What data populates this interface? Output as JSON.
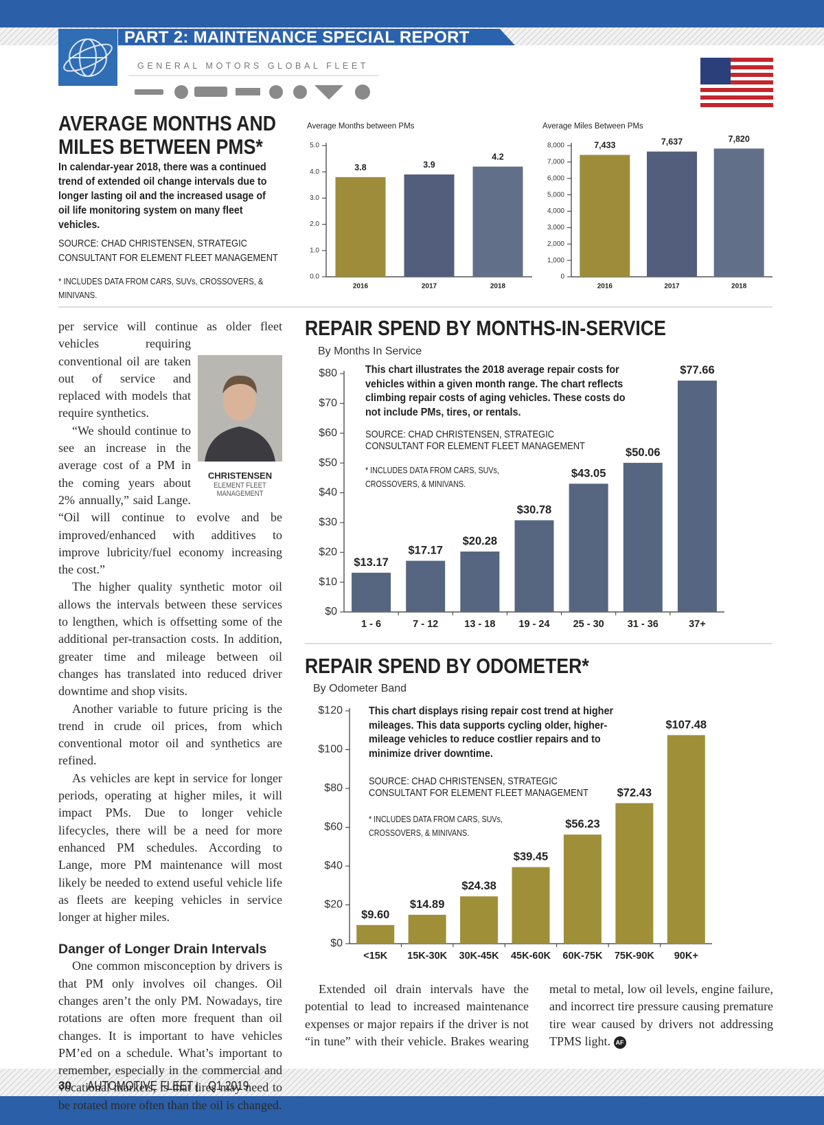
{
  "header": {
    "section": "PART 2: MAINTENANCE SPECIAL REPORT",
    "brand": "GENERAL MOTORS GLOBAL FLEET"
  },
  "sidebar": {
    "title": "AVERAGE MONTHS AND MILES BETWEEN PMS*",
    "intro": "In calendar-year 2018, there was a continued trend of extended oil change intervals due to longer lasting oil and the increased usage of oil life monitoring system on many fleet vehicles.",
    "source": "SOURCE: CHAD CHRISTENSEN, STRATEGIC CONSULTANT FOR ELEMENT FLEET MANAGEMENT",
    "note": "* INCLUDES DATA FROM CARS, SUVs, CROSSOVERS, & MINIVANS."
  },
  "chart_data": [
    {
      "type": "bar",
      "title": "Average Months between PMs",
      "categories": [
        "2016",
        "2017",
        "2018"
      ],
      "values": [
        3.8,
        3.9,
        4.2
      ],
      "colors": [
        "#9e8c3a",
        "#525e7b",
        "#617088"
      ],
      "ylim": [
        0,
        5
      ],
      "yticks": [
        {
          "value": 0,
          "label": "0.0"
        },
        {
          "value": 1,
          "label": "1.0"
        },
        {
          "value": 2,
          "label": "2.0"
        },
        {
          "value": 3,
          "label": "3.0"
        },
        {
          "value": 4,
          "label": "4.0"
        },
        {
          "value": 5,
          "label": "5.0"
        }
      ]
    },
    {
      "type": "bar",
      "title": "Average Miles Between PMs",
      "categories": [
        "2016",
        "2017",
        "2018"
      ],
      "values": [
        7433,
        7637,
        7820
      ],
      "value_labels": [
        "7,433",
        "7,637",
        "7,820"
      ],
      "colors": [
        "#9e8c3a",
        "#525e7b",
        "#617088"
      ],
      "ylim": [
        0,
        8000
      ],
      "yticks": [
        0,
        {
          "value": 1000,
          "label": "1,000"
        },
        {
          "value": 2000,
          "label": "2,000"
        },
        {
          "value": 3000,
          "label": "3,000"
        },
        {
          "value": 4000,
          "label": "4,000"
        },
        {
          "value": 5000,
          "label": "5,000"
        },
        {
          "value": 6000,
          "label": "6,000"
        },
        {
          "value": 7000,
          "label": "7,000"
        },
        {
          "value": 8000,
          "label": "8,000"
        }
      ]
    },
    {
      "type": "bar",
      "title": "REPAIR SPEND BY MONTHS-IN-SERVICE",
      "subtitle": "By Months In Service",
      "annotation": "This chart illustrates the 2018 average repair costs for vehicles within a given month range. The chart reflects climbing repair costs of aging vehicles. These costs do not include PMs, tires, or rentals.",
      "source": "SOURCE: CHAD CHRISTENSEN, STRATEGIC CONSULTANT FOR ELEMENT FLEET MANAGEMENT",
      "note": "* INCLUDES DATA FROM CARS, SUVs, CROSSOVERS, & MINIVANS.",
      "categories": [
        "1 - 6",
        "7 - 12",
        "13 - 18",
        "19 - 24",
        "25 - 30",
        "31 - 36",
        "37+"
      ],
      "values": [
        13.17,
        17.17,
        20.28,
        30.78,
        43.05,
        50.06,
        77.66
      ],
      "value_labels": [
        "$13.17",
        "$17.17",
        "$20.28",
        "$30.78",
        "$43.05",
        "$50.06",
        "$77.66"
      ],
      "color": "#566580",
      "ylim": [
        0,
        80
      ],
      "yticks": [
        {
          "value": 0,
          "label": "$0"
        },
        {
          "value": 10,
          "label": "$10"
        },
        {
          "value": 20,
          "label": "$20"
        },
        {
          "value": 30,
          "label": "$30"
        },
        {
          "value": 40,
          "label": "$40"
        },
        {
          "value": 50,
          "label": "$50"
        },
        {
          "value": 60,
          "label": "$60"
        },
        {
          "value": 70,
          "label": "$70"
        },
        {
          "value": 80,
          "label": "$80"
        }
      ]
    },
    {
      "type": "bar",
      "title": "REPAIR SPEND BY ODOMETER*",
      "subtitle": "By Odometer Band",
      "annotation": "This chart displays rising repair cost trend at higher mileages. This data supports cycling older, higher-mileage vehicles to reduce costlier repairs and to minimize driver downtime.",
      "source": "SOURCE: CHAD CHRISTENSEN, STRATEGIC CONSULTANT FOR ELEMENT FLEET MANAGEMENT",
      "note": "* INCLUDES DATA FROM CARS, SUVs, CROSSOVERS, & MINIVANS.",
      "categories": [
        "<15K",
        "15K-30K",
        "30K-45K",
        "45K-60K",
        "60K-75K",
        "75K-90K",
        "90K+"
      ],
      "values": [
        9.6,
        14.89,
        24.38,
        39.45,
        56.23,
        72.43,
        107.48
      ],
      "value_labels": [
        "$9.60",
        "$14.89",
        "$24.38",
        "$39.45",
        "$56.23",
        "$72.43",
        "$107.48"
      ],
      "color": "#a08f39",
      "ylim": [
        0,
        120
      ],
      "yticks": [
        {
          "value": 0,
          "label": "$0"
        },
        {
          "value": 20,
          "label": "$20"
        },
        {
          "value": 40,
          "label": "$40"
        },
        {
          "value": 60,
          "label": "$60"
        },
        {
          "value": 80,
          "label": "$80"
        },
        {
          "value": 100,
          "label": "$100"
        },
        {
          "value": 120,
          "label": "$120"
        }
      ]
    }
  ],
  "article": {
    "paragraphs": [
      "per service will continue as older fleet vehicles requiring conventional oil are taken out of service and replaced with models that require synthetics.",
      "“We should continue to see an increase in the average cost of a PM in the coming years about 2% annually,” said Lange. “Oil will continue to evolve and be improved/enhanced with additives to improve lubricity/fuel economy increasing the cost.”",
      "The higher quality synthetic motor oil allows the intervals between these services to lengthen, which is offsetting some of the additional per-transaction costs. In addition, greater time and mileage between oil changes has translated into reduced driver downtime and shop visits.",
      "Another variable to future pricing is the trend in crude oil prices, from which conventional motor oil and synthetics are refined.",
      "As vehicles are kept in service for longer periods, operating at higher miles, it will impact PMs. Due to longer vehicle lifecycles, there will be a need for more enhanced PM schedules. According to Lange, more PM maintenance will most likely be needed to extend useful vehicle life as fleets are keeping vehicles in service longer at higher miles."
    ],
    "photo_caption": {
      "name": "CHRISTENSEN",
      "affiliation": "ELEMENT FLEET MANAGEMENT"
    },
    "heading": "Danger of Longer Drain Intervals",
    "section_paragraph": "One common misconception by drivers is that PM only involves oil changes. Oil changes aren’t the only PM. Nowadays, tire rotations are often more frequent than oil changes. It is important to have vehicles PM’ed on a schedule. What’s important to remember, especially in the commercial and vocational markets, is that tires may need to be rotated more often than the oil is changed.",
    "closing_paragraph": "Extended oil drain intervals have the potential to lead to increased maintenance expenses or major repairs if the driver is not “in tune” with their vehicle. Brakes wearing metal to metal, low oil levels, engine failure, and incorrect tire pressure causing premature tire wear caused by drivers not addressing TPMS light.",
    "end_mark": "AF"
  },
  "footer": {
    "page_number": "30",
    "publication": "AUTOMOTIVE FLEET",
    "issue": "Q1 2019"
  }
}
